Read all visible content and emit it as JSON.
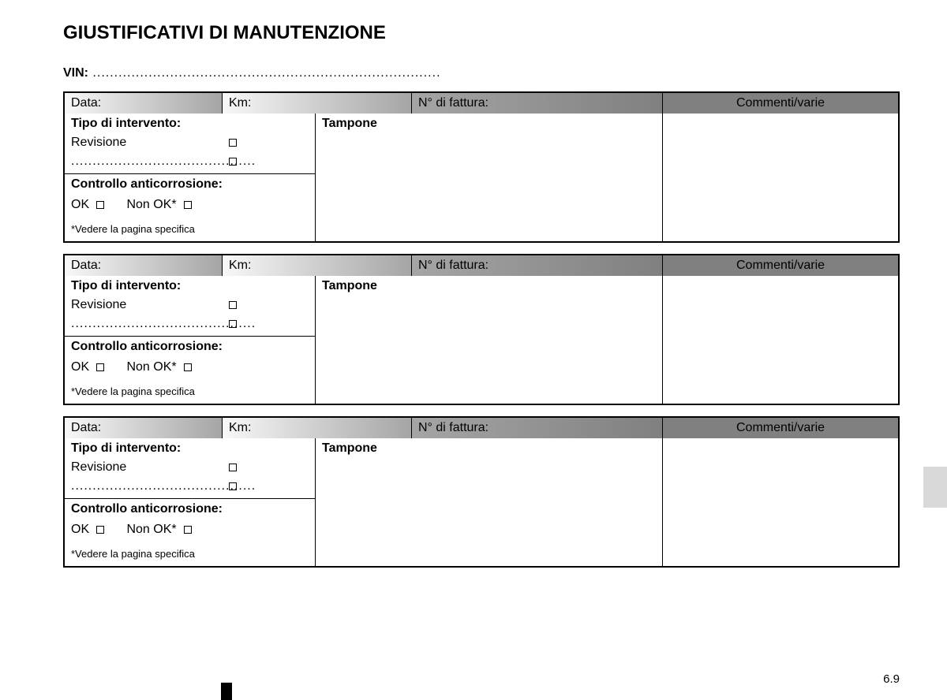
{
  "title": "GIUSTIFICATIVI DI MANUTENZIONE",
  "vin_label": "VIN:",
  "vin_dots": " .................................................................................",
  "header": {
    "data": "Data:",
    "km": "Km:",
    "invoice": "N° di fattura:",
    "comments": "Commenti/varie"
  },
  "body": {
    "intervention_label": "Tipo di intervento:",
    "revision": "Revisione",
    "dots": "...........................................",
    "stamp": "Tampone",
    "anticorrosion_label": "Controllo anticorrosione:",
    "ok": "OK",
    "not_ok": "Non OK*",
    "footnote": "*Vedere la pagina specifica"
  },
  "page_number": "6.9",
  "colors": {
    "border": "#000000",
    "grad_light": "#f8f8f8",
    "grad_mid": "#a5a5a5",
    "grad_dark": "#808080",
    "tab": "#d9d9d9"
  }
}
